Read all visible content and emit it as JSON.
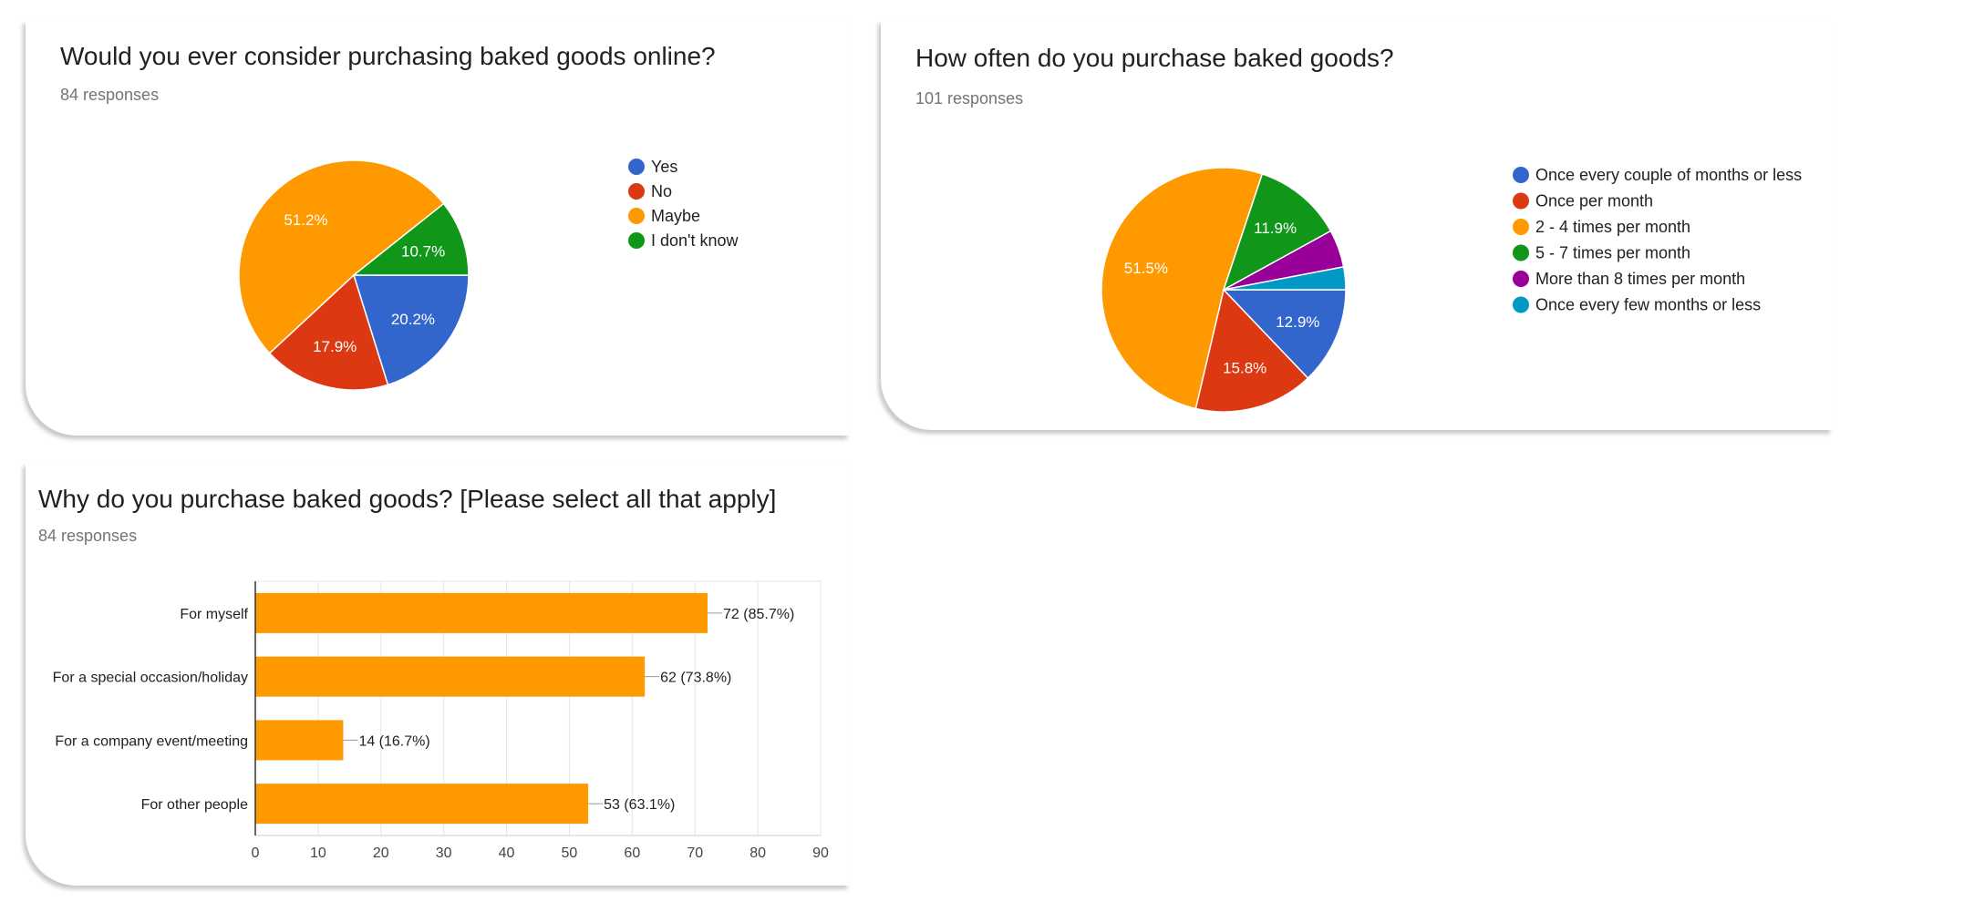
{
  "chart_data": [
    {
      "type": "pie",
      "title": "Would you ever consider purchasing baked goods online?",
      "subtitle": "84 responses",
      "slices": [
        {
          "label": "Yes",
          "value": 20.2,
          "color": "#3366cc",
          "display": "20.2%"
        },
        {
          "label": "No",
          "value": 17.9,
          "color": "#dc3912",
          "display": "17.9%"
        },
        {
          "label": "Maybe",
          "value": 51.2,
          "color": "#ff9900",
          "display": "51.2%"
        },
        {
          "label": "I don't know",
          "value": 10.7,
          "color": "#109618",
          "display": "10.7%"
        }
      ],
      "legend_position": "right"
    },
    {
      "type": "pie",
      "title": "How often do you purchase baked goods?",
      "subtitle": "101 responses",
      "slices": [
        {
          "label": "Once every couple of months or less",
          "value": 12.9,
          "color": "#3366cc",
          "display": "12.9%"
        },
        {
          "label": "Once per month",
          "value": 15.8,
          "color": "#dc3912",
          "display": "15.8%"
        },
        {
          "label": "2 - 4 times per month",
          "value": 51.5,
          "color": "#ff9900",
          "display": "51.5%"
        },
        {
          "label": "5 - 7 times per month",
          "value": 11.9,
          "color": "#109618",
          "display": "11.9%"
        },
        {
          "label": "More than 8 times per month",
          "value": 5.0,
          "color": "#990099",
          "display": ""
        },
        {
          "label": "Once every few months or less",
          "value": 3.0,
          "color": "#0099c6",
          "display": ""
        }
      ],
      "legend_position": "right"
    },
    {
      "type": "bar",
      "orientation": "horizontal",
      "title": "Why do you purchase baked goods? [Please select all that apply]",
      "subtitle": "84 responses",
      "categories": [
        "For myself",
        "For a special occasion/holiday",
        "For a company event/meeting",
        "For other people"
      ],
      "values": [
        72,
        62,
        14,
        53
      ],
      "value_labels": [
        "72 (85.7%)",
        "62 (73.8%)",
        "14 (16.7%)",
        "53 (63.1%)"
      ],
      "xlim": [
        0,
        90
      ],
      "xticks": [
        0,
        10,
        20,
        30,
        40,
        50,
        60,
        70,
        80,
        90
      ],
      "color": "#ff9900",
      "grid": true
    }
  ]
}
